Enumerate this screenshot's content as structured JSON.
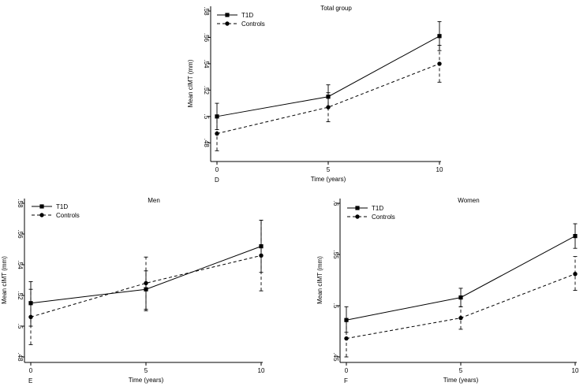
{
  "chart_data": [
    {
      "type": "line",
      "panel_letter": "D",
      "title": "Total group",
      "xlabel": "Time (years)",
      "ylabel": "Mean cIMT (mm)",
      "x": [
        0,
        5,
        10
      ],
      "x_ticks": [
        "0",
        "5",
        "10"
      ],
      "y_ticks": [
        ".48",
        ".5",
        ".52",
        ".54",
        ".56",
        ".58"
      ],
      "y_tick_values": [
        0.48,
        0.5,
        0.52,
        0.54,
        0.56,
        0.58
      ],
      "ylim": [
        0.47,
        0.58
      ],
      "grid": false,
      "legend_position": "top-left",
      "series": [
        {
          "name": "T1D",
          "marker": "square",
          "dash": "solid",
          "values": [
            0.5,
            0.515,
            0.561
          ],
          "ci_low": [
            0.49,
            0.507,
            0.55
          ],
          "ci_high": [
            0.51,
            0.524,
            0.572
          ]
        },
        {
          "name": "Controls",
          "marker": "circle",
          "dash": "dashed",
          "values": [
            0.487,
            0.507,
            0.54
          ],
          "ci_low": [
            0.474,
            0.496,
            0.526
          ],
          "ci_high": [
            0.5,
            0.518,
            0.554
          ]
        }
      ]
    },
    {
      "type": "line",
      "panel_letter": "E",
      "title": "Men",
      "xlabel": "Time (years)",
      "ylabel": "Mean cIMT (mm)",
      "x": [
        0,
        5,
        10
      ],
      "x_ticks": [
        "0",
        "5",
        "10"
      ],
      "y_ticks": [
        ".48",
        ".5",
        ".52",
        ".54",
        ".56",
        ".58"
      ],
      "y_tick_values": [
        0.48,
        0.5,
        0.52,
        0.54,
        0.56,
        0.58
      ],
      "ylim": [
        0.48,
        0.58
      ],
      "grid": false,
      "legend_position": "top-left",
      "series": [
        {
          "name": "T1D",
          "marker": "square",
          "dash": "solid",
          "values": [
            0.515,
            0.524,
            0.552
          ],
          "ci_low": [
            0.5,
            0.51,
            0.535
          ],
          "ci_high": [
            0.529,
            0.536,
            0.569
          ]
        },
        {
          "name": "Controls",
          "marker": "circle",
          "dash": "dashed",
          "values": [
            0.506,
            0.528,
            0.546
          ],
          "ci_low": [
            0.488,
            0.511,
            0.523
          ],
          "ci_high": [
            0.524,
            0.545,
            0.569
          ]
        }
      ]
    },
    {
      "type": "line",
      "panel_letter": "F",
      "title": "Women",
      "xlabel": "Time (years)",
      "ylabel": "Mean cIMT (mm)",
      "x": [
        0,
        5,
        10
      ],
      "x_ticks": [
        "0",
        "5",
        "10"
      ],
      "y_ticks": [
        ".45",
        ".5",
        ".55",
        ".6"
      ],
      "y_tick_values": [
        0.45,
        0.5,
        0.55,
        0.6
      ],
      "ylim": [
        0.45,
        0.6
      ],
      "grid": false,
      "legend_position": "top-left",
      "series": [
        {
          "name": "T1D",
          "marker": "square",
          "dash": "solid",
          "values": [
            0.486,
            0.508,
            0.568
          ],
          "ci_low": [
            0.474,
            0.499,
            0.556
          ],
          "ci_high": [
            0.499,
            0.517,
            0.58
          ]
        },
        {
          "name": "Controls",
          "marker": "circle",
          "dash": "dashed",
          "values": [
            0.468,
            0.488,
            0.531
          ],
          "ci_low": [
            0.45,
            0.477,
            0.515
          ],
          "ci_high": [
            0.486,
            0.499,
            0.548
          ]
        }
      ]
    }
  ]
}
